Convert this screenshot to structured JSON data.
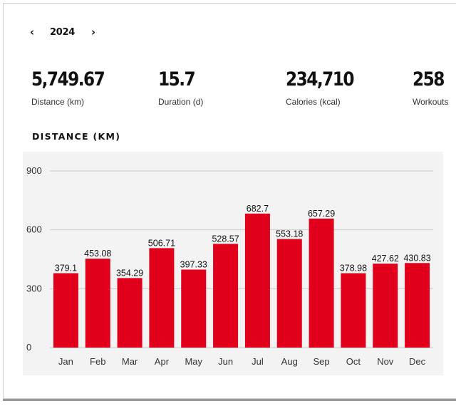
{
  "year_nav": {
    "year": "2024",
    "prev_icon": "‹",
    "next_icon": "›"
  },
  "stats": [
    {
      "value": "5,749.67",
      "label": "Distance (km)"
    },
    {
      "value": "15.7",
      "label": "Duration (d)"
    },
    {
      "value": "234,710",
      "label": "Calories (kcal)"
    },
    {
      "value": "258",
      "label": "Workouts"
    }
  ],
  "section_title": "DISTANCE (KM)",
  "colors": {
    "bar": "#e0001b",
    "grid": "#cccccc",
    "panel": "#f3f3f3"
  },
  "chart_data": {
    "type": "bar",
    "title": "DISTANCE (KM)",
    "xlabel": "",
    "ylabel": "",
    "categories": [
      "Jan",
      "Feb",
      "Mar",
      "Apr",
      "May",
      "Jun",
      "Jul",
      "Aug",
      "Sep",
      "Oct",
      "Nov",
      "Dec"
    ],
    "values": [
      379.1,
      453.08,
      354.29,
      506.71,
      397.33,
      528.57,
      682.7,
      553.18,
      657.29,
      378.98,
      427.62,
      430.83
    ],
    "data_labels": [
      "379.1",
      "453.08",
      "354.29",
      "506.71",
      "397.33",
      "528.57",
      "682.7",
      "553.18",
      "657.29",
      "378.98",
      "427.62",
      "430.83"
    ],
    "yticks": [
      0,
      300,
      600,
      900
    ],
    "ylim": [
      0,
      900
    ],
    "grid": true,
    "legend": "none"
  }
}
